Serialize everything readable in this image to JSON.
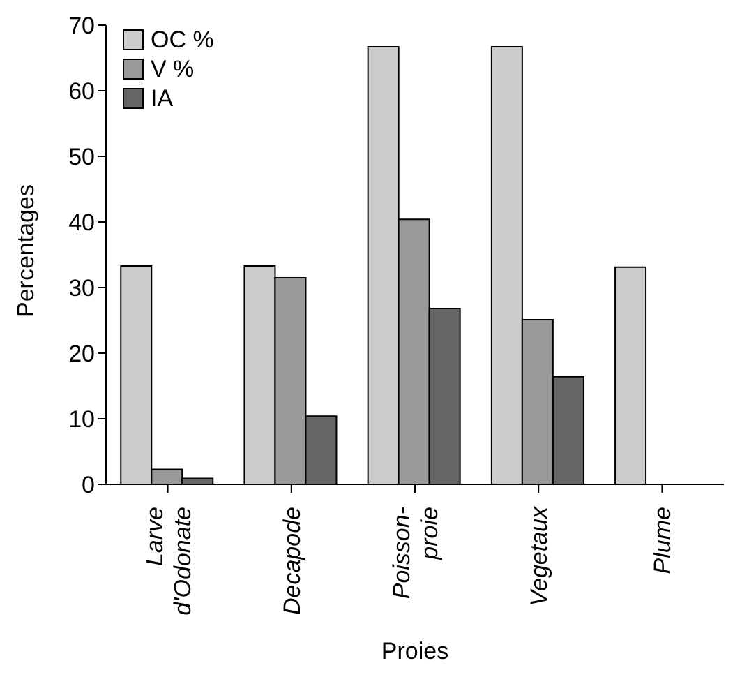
{
  "chart_data": {
    "type": "bar",
    "xlabel": "Proies",
    "ylabel": "Percentages",
    "categories": [
      "Larve d'Odonate",
      "Decapode",
      "Poisson-proie",
      "Vegetaux",
      "Plume"
    ],
    "series": [
      {
        "name": "OC %",
        "color": "#cccccc",
        "values": [
          33.3,
          33.3,
          66.7,
          66.7,
          33.1
        ]
      },
      {
        "name": "V %",
        "color": "#999999",
        "values": [
          2.3,
          31.5,
          40.4,
          25.1,
          0
        ]
      },
      {
        "name": "IA",
        "color": "#666666",
        "values": [
          0.9,
          10.4,
          26.8,
          16.4,
          0
        ]
      }
    ],
    "ylim": [
      0,
      70
    ],
    "yticks": [
      0,
      10,
      20,
      30,
      40,
      50,
      60,
      70
    ],
    "grid": false,
    "legend": "top left"
  }
}
